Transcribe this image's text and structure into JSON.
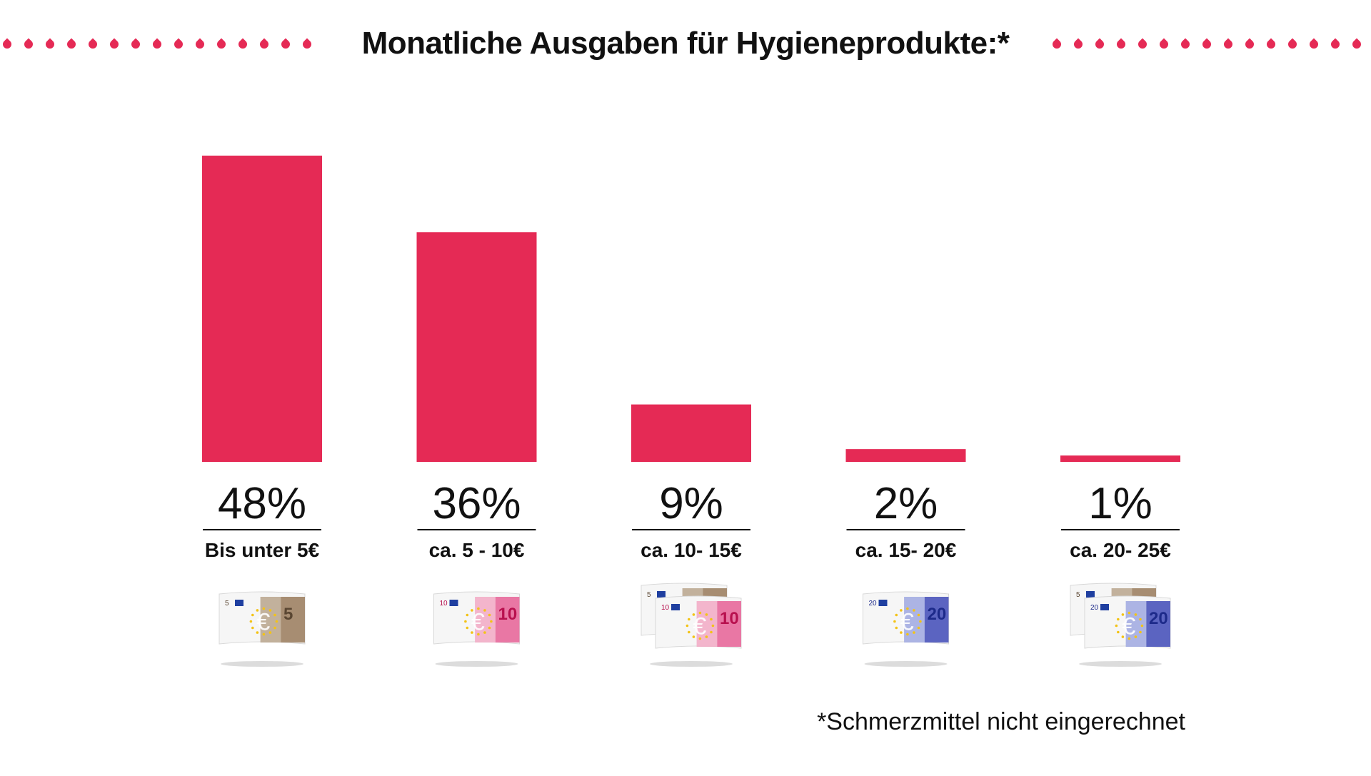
{
  "title": "Monatliche Ausgaben für Hygieneprodukte:*",
  "footnote": "*Schmerzmittel nicht eingerechnet",
  "colors": {
    "bar": "#e52a55",
    "drop": "#e52a55"
  },
  "icons": [
    "banknote-5-icon",
    "banknote-10-icon",
    "banknotes-5-10-icon",
    "banknote-20-icon",
    "banknotes-5-20-icon"
  ],
  "chart_data": {
    "type": "bar",
    "categories": [
      "Bis unter 5€",
      "ca. 5 - 10€",
      "ca. 10- 15€",
      "ca. 15- 20€",
      "ca. 20- 25€"
    ],
    "values": [
      48,
      36,
      9,
      2,
      1
    ],
    "data_labels": [
      "48%",
      "36%",
      "9%",
      "2%",
      "1%"
    ],
    "unit": "%",
    "title": "Monatliche Ausgaben für Hygieneprodukte:*",
    "ylim": [
      0,
      48
    ],
    "grid": false,
    "legend": "none"
  }
}
